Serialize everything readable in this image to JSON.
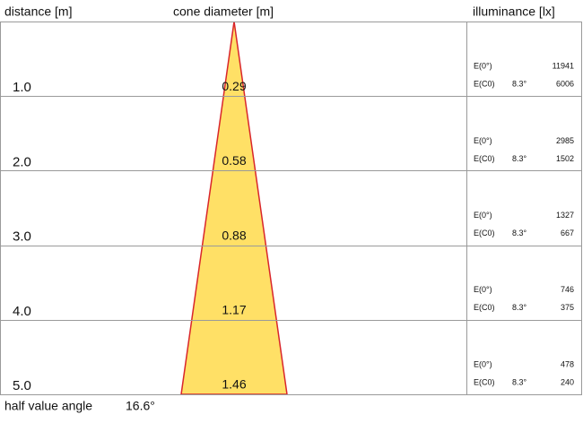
{
  "header": {
    "distance": "distance [m]",
    "cone_diameter": "cone diameter [m]",
    "illuminance": "illuminance [lx]"
  },
  "rows": [
    {
      "distance": "1.0",
      "diameter": "0.29",
      "e0_label": "E(0°)",
      "e0": "11941",
      "ec0_label": "E(C0)",
      "angle": "8.3°",
      "ec0": "6006"
    },
    {
      "distance": "2.0",
      "diameter": "0.58",
      "e0_label": "E(0°)",
      "e0": "2985",
      "ec0_label": "E(C0)",
      "angle": "8.3°",
      "ec0": "1502"
    },
    {
      "distance": "3.0",
      "diameter": "0.88",
      "e0_label": "E(0°)",
      "e0": "1327",
      "ec0_label": "E(C0)",
      "angle": "8.3°",
      "ec0": "667"
    },
    {
      "distance": "4.0",
      "diameter": "1.17",
      "e0_label": "E(0°)",
      "e0": "746",
      "ec0_label": "E(C0)",
      "angle": "8.3°",
      "ec0": "375"
    },
    {
      "distance": "5.0",
      "diameter": "1.46",
      "e0_label": "E(0°)",
      "e0": "478",
      "ec0_label": "E(C0)",
      "angle": "8.3°",
      "ec0": "240"
    }
  ],
  "footer": {
    "label": "half value angle",
    "value": "16.6°"
  }
}
